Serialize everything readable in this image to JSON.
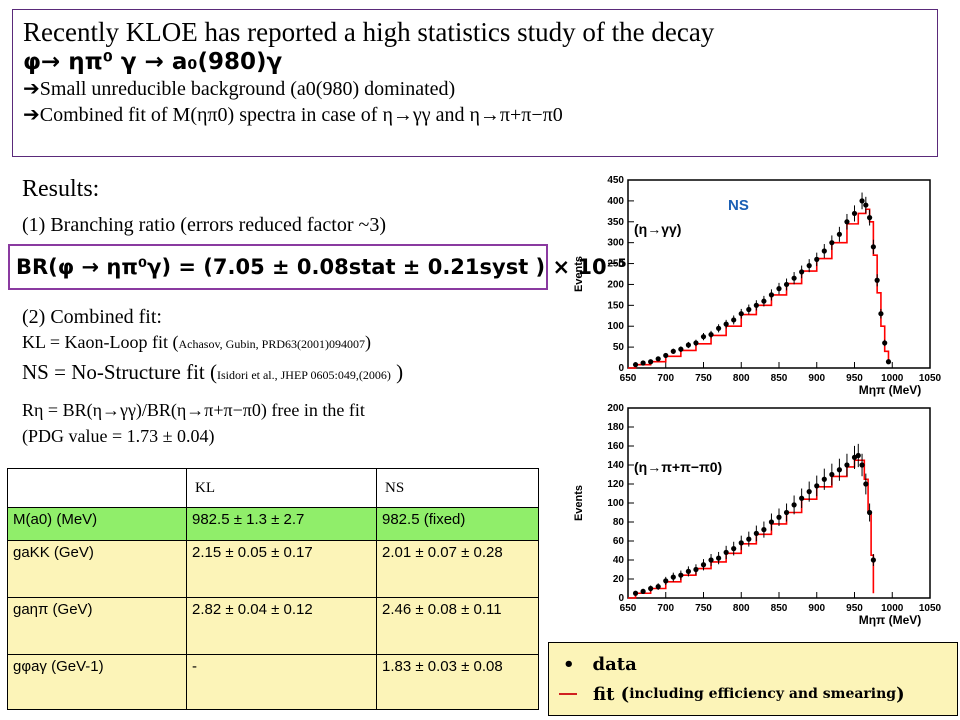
{
  "header": {
    "line1": "Recently KLOE has reported a high statistics study of the decay",
    "decay": "φ→ ηπ⁰ γ → a₀(980)γ",
    "bullet1": "Small unreducible background (a0(980) dominated)",
    "bullet2": "Combined fit of M(ηπ0) spectra in case of η→γγ and η→π+π−π0"
  },
  "results": {
    "title": "Results:",
    "item1": "(1) Branching ratio (errors reduced factor ~3)",
    "br_formula": "BR(φ → ηπ⁰γ) = (7.05 ± 0.08stat ± 0.21syst ) × 10⁻⁵",
    "item2": "(2) Combined fit:",
    "kl_line": "KL = Kaon-Loop fit (",
    "kl_ref": "Achasov, Gubin, PRD63(2001)094007",
    "ns_line": "NS = No-Structure fit (",
    "ns_ref": "Isidori et al., JHEP 0605:049,(2006)",
    "reta_line": "Rη = BR(η→γγ)/BR(η→π+π−π0) free in the fit",
    "pdg_line": "(PDG value = 1.73 ± 0.04)"
  },
  "table": {
    "headers": [
      "",
      "KL",
      "NS"
    ],
    "rows": [
      {
        "param": "M(a0) (MeV)",
        "kl": "982.5 ± 1.3 ± 2.7",
        "ns": "982.5 (fixed)"
      },
      {
        "param": "gaKK (GeV)",
        "kl": "2.15 ± 0.05 ± 0.17",
        "ns": "2.01 ± 0.07 ± 0.28"
      },
      {
        "param": "gaηπ (GeV)",
        "kl": "2.82 ± 0.04 ± 0.12",
        "ns": "2.46 ± 0.08 ± 0.11"
      },
      {
        "param": "gφaγ (GeV-1)",
        "kl": "-",
        "ns": "1.83 ± 0.03 ± 0.08"
      }
    ]
  },
  "legend": {
    "data": "data",
    "fit": "fit (",
    "fit_small": "including efficiency and smearing",
    "fit_close": ")"
  },
  "colors": {
    "fit_line": "#ff0000",
    "border": "#5a2a7a",
    "table_green": "#90ee6a",
    "table_yellow": "#fcf4b8",
    "ns_label": "#1a5fb4"
  },
  "chart_data": [
    {
      "type": "scatter",
      "ns_label": "NS",
      "channel_label": "(η→γγ)",
      "ylabel": "Events",
      "xlabel": "Mηπ (MeV)",
      "xlim": [
        650,
        1050
      ],
      "ylim": [
        0,
        450
      ],
      "xticks": [
        "650",
        "700",
        "750",
        "800",
        "850",
        "900",
        "950",
        "1000",
        "1050"
      ],
      "yticks": [
        "0",
        "50",
        "100",
        "150",
        "200",
        "250",
        "300",
        "350",
        "400",
        "450"
      ],
      "series": [
        {
          "name": "data",
          "x": [
            660,
            670,
            680,
            690,
            700,
            710,
            720,
            730,
            740,
            750,
            760,
            770,
            780,
            790,
            800,
            810,
            820,
            830,
            840,
            850,
            860,
            870,
            880,
            890,
            900,
            910,
            920,
            930,
            940,
            950,
            960,
            965,
            970,
            975,
            980,
            985,
            990,
            995
          ],
          "y": [
            8,
            12,
            15,
            22,
            30,
            40,
            45,
            55,
            60,
            75,
            80,
            95,
            105,
            115,
            130,
            140,
            150,
            160,
            175,
            190,
            200,
            215,
            230,
            245,
            260,
            280,
            300,
            320,
            350,
            370,
            400,
            390,
            360,
            290,
            210,
            130,
            60,
            15
          ]
        },
        {
          "name": "fit",
          "x": [
            650,
            660,
            680,
            700,
            720,
            740,
            760,
            780,
            800,
            820,
            840,
            860,
            880,
            900,
            920,
            940,
            955,
            965,
            970,
            975,
            980,
            985,
            990,
            995
          ],
          "y": [
            0,
            8,
            15,
            28,
            42,
            58,
            78,
            100,
            128,
            150,
            175,
            202,
            232,
            262,
            300,
            345,
            370,
            380,
            350,
            270,
            180,
            100,
            40,
            10
          ]
        }
      ]
    },
    {
      "type": "scatter",
      "channel_label": "(η→π+π−π0)",
      "ylabel": "Events",
      "xlabel": "Mηπ (MeV)",
      "xlim": [
        650,
        1050
      ],
      "ylim": [
        0,
        200
      ],
      "xticks": [
        "650",
        "700",
        "750",
        "800",
        "850",
        "900",
        "950",
        "1000",
        "1050"
      ],
      "yticks": [
        "0",
        "20",
        "40",
        "60",
        "80",
        "100",
        "120",
        "140",
        "160",
        "180",
        "200"
      ],
      "series": [
        {
          "name": "data",
          "x": [
            660,
            670,
            680,
            690,
            700,
            710,
            720,
            730,
            740,
            750,
            760,
            770,
            780,
            790,
            800,
            810,
            820,
            830,
            840,
            850,
            860,
            870,
            880,
            890,
            900,
            910,
            920,
            930,
            940,
            950,
            955,
            960,
            965,
            970,
            975
          ],
          "y": [
            5,
            7,
            10,
            12,
            18,
            22,
            24,
            28,
            30,
            35,
            40,
            42,
            48,
            52,
            58,
            62,
            68,
            72,
            80,
            85,
            90,
            98,
            105,
            112,
            118,
            125,
            130,
            135,
            140,
            148,
            150,
            140,
            120,
            90,
            40
          ]
        },
        {
          "name": "fit",
          "x": [
            650,
            660,
            680,
            700,
            720,
            740,
            760,
            780,
            800,
            820,
            840,
            860,
            880,
            900,
            920,
            940,
            950,
            958,
            963,
            968,
            972,
            975
          ],
          "y": [
            0,
            5,
            10,
            17,
            24,
            31,
            38,
            47,
            57,
            67,
            78,
            90,
            104,
            117,
            128,
            138,
            145,
            145,
            125,
            90,
            45,
            5
          ]
        }
      ]
    }
  ]
}
